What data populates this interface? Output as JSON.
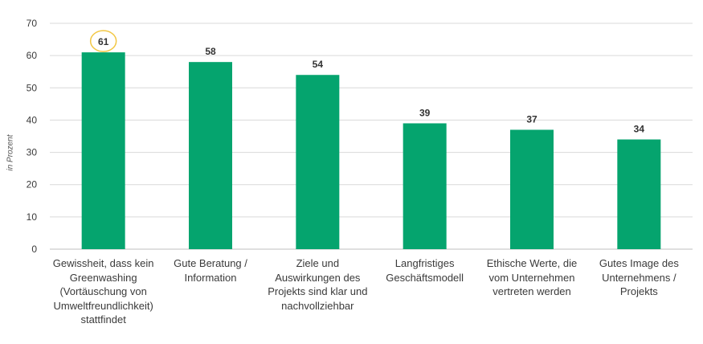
{
  "chart_data": {
    "type": "bar",
    "ylabel": "in Prozent",
    "ylim": [
      0,
      70
    ],
    "yticks": [
      0,
      10,
      20,
      30,
      40,
      50,
      60,
      70
    ],
    "grid": true,
    "categories": [
      "Gewissheit, dass kein\nGreenwashing\n(Vortäuschung von\nUmweltfreundlichkeit)\nstattfindet",
      "Gute Beratung /\nInformation",
      "Ziele und\nAuswirkungen des\nProjekts sind klar und\nnachvollziehbar",
      "Langfristiges\nGeschäftsmodell",
      "Ethische Werte, die\nvom Unternehmen\nvertreten werden",
      "Gutes Image des\nUnternehmens /\nProjekts"
    ],
    "values": [
      61,
      58,
      54,
      39,
      37,
      34
    ],
    "highlighted_index": 0,
    "colors": {
      "bar": "#05a46e",
      "highlight_ring": "#f2c744",
      "grid": "#d9d9d9",
      "tick_text": "#3a3a3a",
      "value_text": "#333333"
    }
  }
}
